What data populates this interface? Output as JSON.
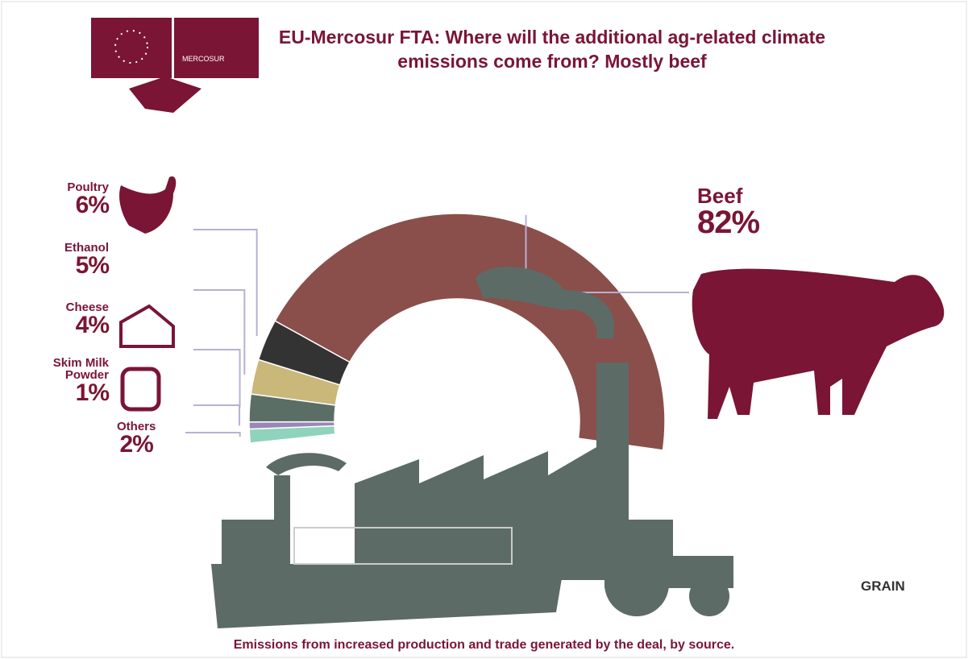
{
  "chart_data": {
    "type": "donut",
    "title": "EU-Mercosur FTA: Where will the additional ag-related climate emissions come from? Mostly beef",
    "caption": "Emissions from increased production and trade generated by the deal, by source.",
    "logo_text": "GRAIN",
    "badge_text": "MERCOSUR",
    "categories": [
      "Others",
      "Skim Milk Powder",
      "Cheese",
      "Ethanol",
      "Poultry",
      "Beef"
    ],
    "values": [
      2,
      1,
      4,
      5,
      6,
      82
    ],
    "value_labels": [
      "2%",
      "1%",
      "4%",
      "5%",
      "6%",
      "82%"
    ],
    "colors": [
      "#8fd3bc",
      "#9b86b8",
      "#5a6e66",
      "#c9b87a",
      "#333333",
      "#8a4f4a"
    ]
  }
}
